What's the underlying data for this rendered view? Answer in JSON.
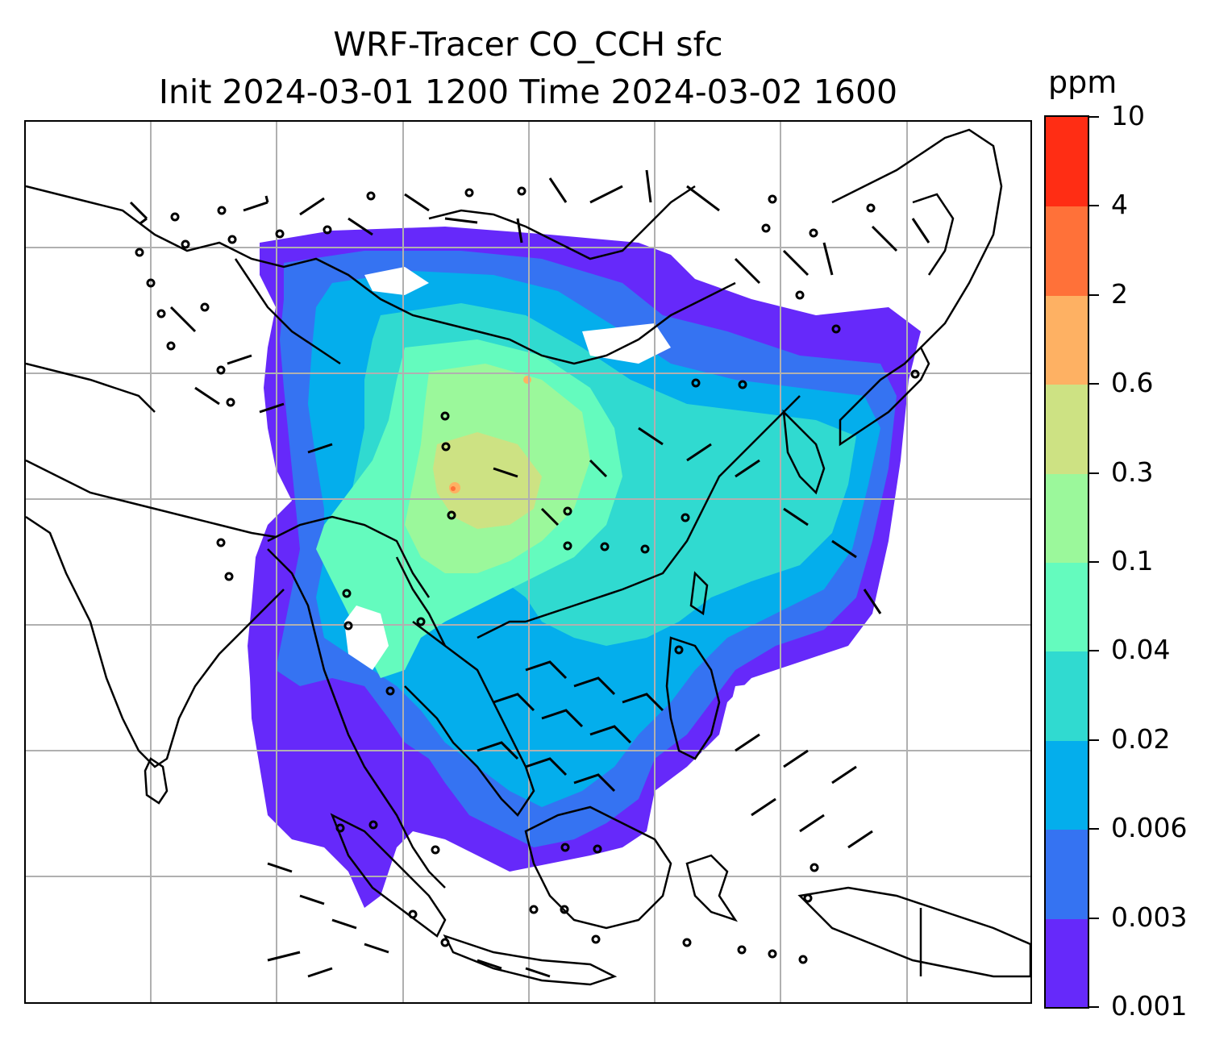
{
  "title": {
    "line1": "WRF-Tracer CO_CCH sfc",
    "line2": "Init 2024-03-01 1200 Time 2024-03-02 1600"
  },
  "colorbar": {
    "unit": "ppm",
    "levels": [
      "0.001",
      "0.003",
      "0.006",
      "0.02",
      "0.04",
      "0.1",
      "0.3",
      "0.6",
      "2",
      "4",
      "10"
    ],
    "colors": [
      "#6629fa",
      "#3573f2",
      "#04aeec",
      "#30dad0",
      "#64fbbe",
      "#9bf89b",
      "#cde283",
      "#feb163",
      "#ff7139",
      "#ff2d14"
    ]
  },
  "map": {
    "coastline_color": "#000000",
    "gridline_color": "#b0b0b0",
    "background": "#ffffff"
  }
}
